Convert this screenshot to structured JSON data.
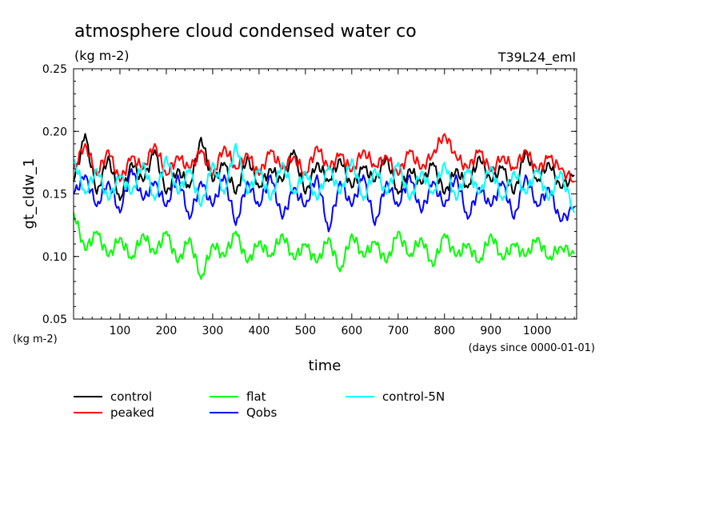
{
  "chart_data": {
    "type": "line",
    "title": "atmosphere cloud condensed water co",
    "subtitle": "(kg m-2)",
    "run_label": "T39L24_eml",
    "xlabel": "time",
    "x_unit": "(days since 0000-01-01)",
    "ylabel": "gt_cldw_1",
    "y_unit": "(kg m-2)",
    "xlim": [
      0,
      1085
    ],
    "ylim": [
      0.05,
      0.25
    ],
    "x_ticks": [
      100,
      200,
      300,
      400,
      500,
      600,
      700,
      800,
      900,
      1000
    ],
    "y_ticks": [
      "0.05",
      "0.10",
      "0.15",
      "0.20",
      "0.25"
    ],
    "x_tick_labels": [
      "100",
      "200",
      "300",
      "400",
      "500",
      "600",
      "700",
      "800",
      "900",
      "1000"
    ],
    "grid": false,
    "legend_position": "bottom",
    "x": [
      0,
      25,
      50,
      75,
      100,
      125,
      150,
      175,
      200,
      225,
      250,
      275,
      300,
      325,
      350,
      375,
      400,
      425,
      450,
      475,
      500,
      525,
      550,
      575,
      600,
      625,
      650,
      675,
      700,
      725,
      750,
      775,
      800,
      825,
      850,
      875,
      900,
      925,
      950,
      975,
      1000,
      1025,
      1050,
      1080
    ],
    "series": [
      {
        "name": "control",
        "color": "#000000",
        "values": [
          0.16,
          0.198,
          0.15,
          0.18,
          0.145,
          0.175,
          0.16,
          0.185,
          0.15,
          0.17,
          0.155,
          0.195,
          0.16,
          0.175,
          0.15,
          0.18,
          0.155,
          0.17,
          0.16,
          0.185,
          0.15,
          0.175,
          0.16,
          0.178,
          0.155,
          0.172,
          0.16,
          0.18,
          0.15,
          0.17,
          0.158,
          0.175,
          0.15,
          0.17,
          0.155,
          0.18,
          0.16,
          0.172,
          0.15,
          0.185,
          0.16,
          0.175,
          0.155,
          0.165
        ]
      },
      {
        "name": "peaked",
        "color": "#ff0000",
        "values": [
          0.17,
          0.19,
          0.165,
          0.185,
          0.16,
          0.18,
          0.17,
          0.19,
          0.165,
          0.18,
          0.17,
          0.185,
          0.165,
          0.188,
          0.17,
          0.182,
          0.165,
          0.185,
          0.17,
          0.18,
          0.165,
          0.188,
          0.17,
          0.182,
          0.168,
          0.185,
          0.172,
          0.18,
          0.165,
          0.185,
          0.17,
          0.182,
          0.198,
          0.18,
          0.17,
          0.185,
          0.168,
          0.18,
          0.17,
          0.185,
          0.168,
          0.18,
          0.17,
          0.16
        ]
      },
      {
        "name": "flat",
        "color": "#00ff00",
        "values": [
          0.135,
          0.105,
          0.12,
          0.1,
          0.115,
          0.098,
          0.118,
          0.102,
          0.12,
          0.095,
          0.115,
          0.082,
          0.11,
          0.1,
          0.12,
          0.095,
          0.112,
          0.1,
          0.118,
          0.098,
          0.11,
          0.095,
          0.115,
          0.088,
          0.118,
          0.1,
          0.112,
          0.095,
          0.12,
          0.1,
          0.115,
          0.092,
          0.118,
          0.1,
          0.11,
          0.095,
          0.118,
          0.098,
          0.11,
          0.1,
          0.115,
          0.098,
          0.108,
          0.102
        ]
      },
      {
        "name": "Qobs",
        "color": "#0000ff",
        "values": [
          0.15,
          0.165,
          0.14,
          0.16,
          0.135,
          0.17,
          0.145,
          0.16,
          0.14,
          0.165,
          0.13,
          0.16,
          0.14,
          0.165,
          0.125,
          0.16,
          0.14,
          0.165,
          0.13,
          0.155,
          0.14,
          0.165,
          0.12,
          0.16,
          0.14,
          0.165,
          0.125,
          0.16,
          0.14,
          0.165,
          0.135,
          0.16,
          0.14,
          0.165,
          0.13,
          0.155,
          0.14,
          0.16,
          0.13,
          0.165,
          0.14,
          0.155,
          0.128,
          0.14
        ]
      },
      {
        "name": "control-5N",
        "color": "#00ffff",
        "values": [
          0.178,
          0.15,
          0.17,
          0.145,
          0.165,
          0.15,
          0.175,
          0.145,
          0.18,
          0.15,
          0.17,
          0.14,
          0.175,
          0.15,
          0.19,
          0.15,
          0.17,
          0.145,
          0.175,
          0.15,
          0.168,
          0.145,
          0.172,
          0.15,
          0.178,
          0.145,
          0.17,
          0.15,
          0.175,
          0.145,
          0.168,
          0.15,
          0.175,
          0.145,
          0.17,
          0.15,
          0.172,
          0.145,
          0.168,
          0.15,
          0.17,
          0.145,
          0.168,
          0.135
        ]
      }
    ]
  }
}
